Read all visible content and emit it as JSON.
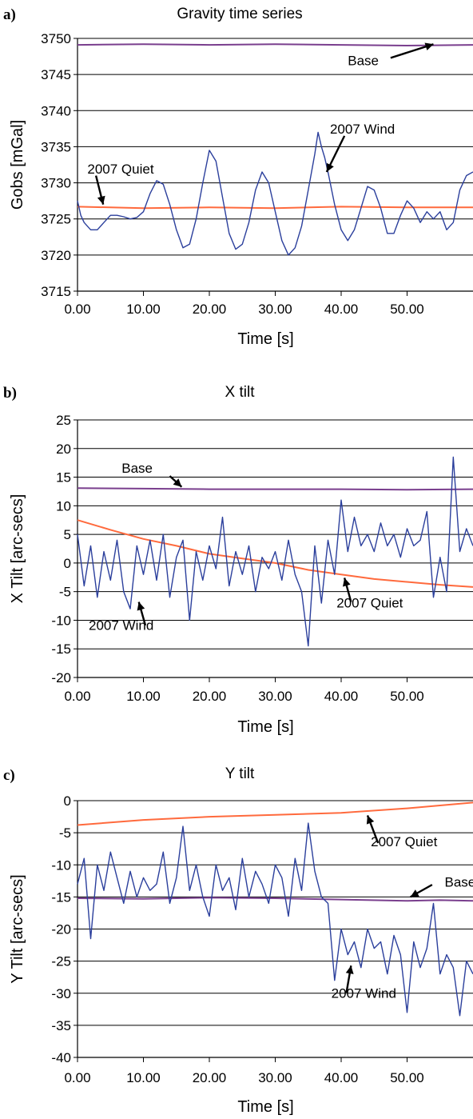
{
  "colors": {
    "base": "#7a3f8e",
    "quiet": "#ff6a3d",
    "wind": "#2b3f9c",
    "grid": "#000000"
  },
  "chart_data": [
    {
      "type": "line",
      "panel": "a)",
      "title": "Gravity time series",
      "xlabel": "Time [s]",
      "ylabel": "Gobs [mGal]",
      "xlim": [
        0,
        60
      ],
      "ylim": [
        3715,
        3750
      ],
      "xticks": [
        0,
        10,
        20,
        30,
        40,
        50
      ],
      "xtick_labels": [
        "0.00",
        "10.00",
        "20.00",
        "30.00",
        "40.00",
        "50.00"
      ],
      "yticks": [
        3715,
        3720,
        3725,
        3730,
        3735,
        3740,
        3745,
        3750
      ],
      "grid": "horizontal",
      "annotations": [
        {
          "text": "Base",
          "x": 41,
          "y": 3746.3
        },
        {
          "text": "2007  Wind",
          "x": 38.3,
          "y": 3736.8
        },
        {
          "text": "2007 Quiet",
          "x": 1.5,
          "y": 3731.3
        }
      ],
      "series": [
        {
          "key": "base",
          "x": [
            0,
            10,
            20,
            30,
            40,
            50,
            60
          ],
          "y": [
            3749.1,
            3749.2,
            3749.1,
            3749.2,
            3749.1,
            3749.0,
            3749.1
          ]
        },
        {
          "key": "quiet",
          "x": [
            0,
            10,
            20,
            30,
            40,
            50,
            60
          ],
          "y": [
            3726.7,
            3726.5,
            3726.6,
            3726.5,
            3726.7,
            3726.6,
            3726.6
          ]
        },
        {
          "key": "wind",
          "x": [
            0,
            0.5,
            1,
            2,
            3,
            4,
            5,
            6,
            7,
            8,
            9,
            10,
            11,
            12,
            13,
            14,
            15,
            16,
            17,
            18,
            19,
            20,
            21,
            22,
            23,
            24,
            25,
            26,
            27,
            28,
            29,
            30,
            31,
            32,
            33,
            34,
            35,
            36,
            36.5,
            37,
            37.5,
            38,
            39,
            40,
            41,
            42,
            43,
            44,
            45,
            46,
            47,
            48,
            49,
            50,
            51,
            52,
            53,
            54,
            55,
            56,
            57,
            58,
            59,
            60
          ],
          "y": [
            3727.5,
            3725.5,
            3724.5,
            3723.5,
            3723.5,
            3724.5,
            3725.5,
            3725.5,
            3725.3,
            3725.0,
            3725.2,
            3726.0,
            3728.5,
            3730.3,
            3729.8,
            3727.0,
            3723.5,
            3721.0,
            3721.5,
            3725.0,
            3730.0,
            3734.5,
            3733.0,
            3728.0,
            3723.0,
            3720.8,
            3721.5,
            3724.5,
            3729.0,
            3731.5,
            3730.0,
            3726.0,
            3722.0,
            3720.0,
            3721.0,
            3724.0,
            3729.0,
            3734.0,
            3737.0,
            3735.0,
            3733.5,
            3731.5,
            3727.0,
            3723.5,
            3722.0,
            3723.5,
            3726.5,
            3729.5,
            3729.0,
            3726.5,
            3723.0,
            3723.0,
            3725.5,
            3727.5,
            3726.5,
            3724.5,
            3726.0,
            3725.0,
            3726.0,
            3723.5,
            3724.5,
            3729.0,
            3731.0,
            3731.5
          ]
        }
      ]
    },
    {
      "type": "line",
      "panel": "b)",
      "title": "X tilt",
      "xlabel": "Time [s]",
      "ylabel": "X Tilt [arc-secs]",
      "xlim": [
        0,
        60
      ],
      "ylim": [
        -20,
        25
      ],
      "xticks": [
        0,
        10,
        20,
        30,
        40,
        50
      ],
      "xtick_labels": [
        "0.00",
        "10.00",
        "20.00",
        "30.00",
        "40.00",
        "50.00"
      ],
      "yticks": [
        -20,
        -15,
        -10,
        -5,
        0,
        5,
        10,
        15,
        20,
        25
      ],
      "grid": "horizontal",
      "annotations": [
        {
          "text": "Base",
          "x": 6.7,
          "y": 15.8
        },
        {
          "text": "2007 Quiet",
          "x": 39.3,
          "y": -7.8
        },
        {
          "text": "2007  Wind",
          "x": 1.7,
          "y": -11.7
        }
      ],
      "series": [
        {
          "key": "base",
          "x": [
            0,
            10,
            20,
            30,
            40,
            50,
            60
          ],
          "y": [
            13.1,
            13.0,
            12.9,
            12.9,
            12.9,
            12.8,
            12.9
          ]
        },
        {
          "key": "quiet",
          "x": [
            0,
            5,
            10,
            15,
            20,
            25,
            30,
            35,
            40,
            45,
            50,
            55,
            60
          ],
          "y": [
            7.5,
            5.8,
            4.2,
            3.0,
            1.6,
            0.8,
            0.0,
            -1.2,
            -2.0,
            -2.8,
            -3.3,
            -3.8,
            -4.2
          ]
        },
        {
          "key": "wind",
          "x": [
            0,
            1,
            2,
            3,
            4,
            5,
            6,
            7,
            8,
            9,
            10,
            11,
            12,
            13,
            14,
            15,
            16,
            17,
            18,
            19,
            20,
            21,
            22,
            23,
            24,
            25,
            26,
            27,
            28,
            29,
            30,
            31,
            32,
            33,
            34,
            35,
            36,
            37,
            38,
            39,
            40,
            41,
            42,
            43,
            44,
            45,
            46,
            47,
            48,
            49,
            50,
            51,
            52,
            53,
            54,
            55,
            56,
            57,
            58,
            59,
            60
          ],
          "y": [
            5,
            -4,
            3,
            -6,
            2,
            -3,
            4,
            -5,
            -8,
            3,
            -2,
            4,
            -3,
            5,
            -6,
            1,
            4,
            -10,
            2,
            -3,
            3,
            -1,
            8,
            -4,
            2,
            -2,
            3,
            -5,
            1,
            -1,
            2,
            -3,
            4,
            -2,
            -5,
            -14.5,
            3,
            -7,
            4,
            -2,
            11,
            2,
            8,
            3,
            5,
            2,
            7,
            3,
            5,
            1,
            6,
            3,
            4,
            9,
            -6,
            1,
            -5,
            18.5,
            2,
            6,
            3
          ]
        }
      ]
    },
    {
      "type": "line",
      "panel": "c)",
      "title": "Y tilt",
      "xlabel": "Time [s]",
      "ylabel": "Y Tilt [arc-secs]",
      "xlim": [
        0,
        60
      ],
      "ylim": [
        -40,
        0
      ],
      "xticks": [
        0,
        10,
        20,
        30,
        40,
        50
      ],
      "xtick_labels": [
        "0.00",
        "10.00",
        "20.00",
        "30.00",
        "40.00",
        "50.00"
      ],
      "yticks": [
        -40,
        -35,
        -30,
        -25,
        -20,
        -15,
        -10,
        -5,
        0
      ],
      "grid": "horizontal",
      "annotations": [
        {
          "text": "2007 Quiet",
          "x": 44.5,
          "y": -7.1
        },
        {
          "text": "Base",
          "x": 55.7,
          "y": -13.4
        },
        {
          "text": "2007  Wind",
          "x": 38.5,
          "y": -30.7
        }
      ],
      "series": [
        {
          "key": "base",
          "x": [
            0,
            10,
            20,
            30,
            40,
            50,
            55,
            60
          ],
          "y": [
            -15.2,
            -15.3,
            -15.1,
            -15.2,
            -15.4,
            -15.6,
            -15.5,
            -15.6
          ]
        },
        {
          "key": "quiet",
          "x": [
            0,
            10,
            20,
            30,
            40,
            50,
            60
          ],
          "y": [
            -3.8,
            -3.0,
            -2.5,
            -2.2,
            -1.9,
            -1.2,
            -0.3
          ]
        },
        {
          "key": "wind",
          "x": [
            0,
            1,
            2,
            3,
            4,
            5,
            6,
            7,
            8,
            9,
            10,
            11,
            12,
            13,
            14,
            15,
            16,
            17,
            18,
            19,
            20,
            21,
            22,
            23,
            24,
            25,
            26,
            27,
            28,
            29,
            30,
            31,
            32,
            33,
            34,
            35,
            36,
            37,
            38,
            39,
            40,
            41,
            42,
            43,
            44,
            45,
            46,
            47,
            48,
            49,
            50,
            51,
            52,
            53,
            54,
            55,
            56,
            57,
            58,
            59,
            60
          ],
          "y": [
            -13,
            -9,
            -21.5,
            -10,
            -14,
            -8,
            -12,
            -16,
            -11,
            -15,
            -12,
            -14,
            -13,
            -8,
            -16,
            -12,
            -4,
            -14,
            -10,
            -15,
            -18,
            -10,
            -14,
            -12,
            -17,
            -9,
            -15,
            -11,
            -13,
            -16,
            -10,
            -12,
            -18,
            -9,
            -14,
            -3.5,
            -11,
            -15,
            -16,
            -28,
            -20,
            -24,
            -22,
            -26,
            -20,
            -23,
            -22,
            -27,
            -21,
            -24,
            -33,
            -22,
            -26,
            -23,
            -16,
            -27,
            -24,
            -26,
            -33.5,
            -25,
            -27
          ]
        }
      ]
    }
  ]
}
